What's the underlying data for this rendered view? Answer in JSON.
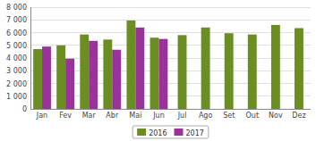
{
  "chart_data": {
    "type": "bar",
    "categories": [
      "Jan",
      "Fev",
      "Mar",
      "Abr",
      "Mai",
      "Jun",
      "Jul",
      "Ago",
      "Set",
      "Out",
      "Nov",
      "Dez"
    ],
    "series": [
      {
        "name": "2016",
        "color": "#6b8e23",
        "values": [
          4700,
          5000,
          5850,
          5450,
          6950,
          5600,
          5800,
          6400,
          5950,
          5850,
          6600,
          6350
        ]
      },
      {
        "name": "2017",
        "color": "#993399",
        "values": [
          4900,
          3950,
          5350,
          4650,
          6400,
          5500,
          null,
          null,
          null,
          null,
          null,
          null
        ]
      }
    ],
    "ylim": [
      0,
      8000
    ],
    "yticks": [
      0,
      {
        "value": 1000,
        "label": "1 000"
      },
      {
        "value": 2000,
        "label": "2 000"
      },
      {
        "value": 3000,
        "label": "3 000"
      },
      {
        "value": 4000,
        "label": "4 000"
      },
      {
        "value": 5000,
        "label": "5 000"
      },
      {
        "value": 6000,
        "label": "6 000"
      },
      {
        "value": 7000,
        "label": "7 000"
      },
      {
        "value": 8000,
        "label": "8 000"
      }
    ],
    "grid": true,
    "legend": "bottom"
  }
}
